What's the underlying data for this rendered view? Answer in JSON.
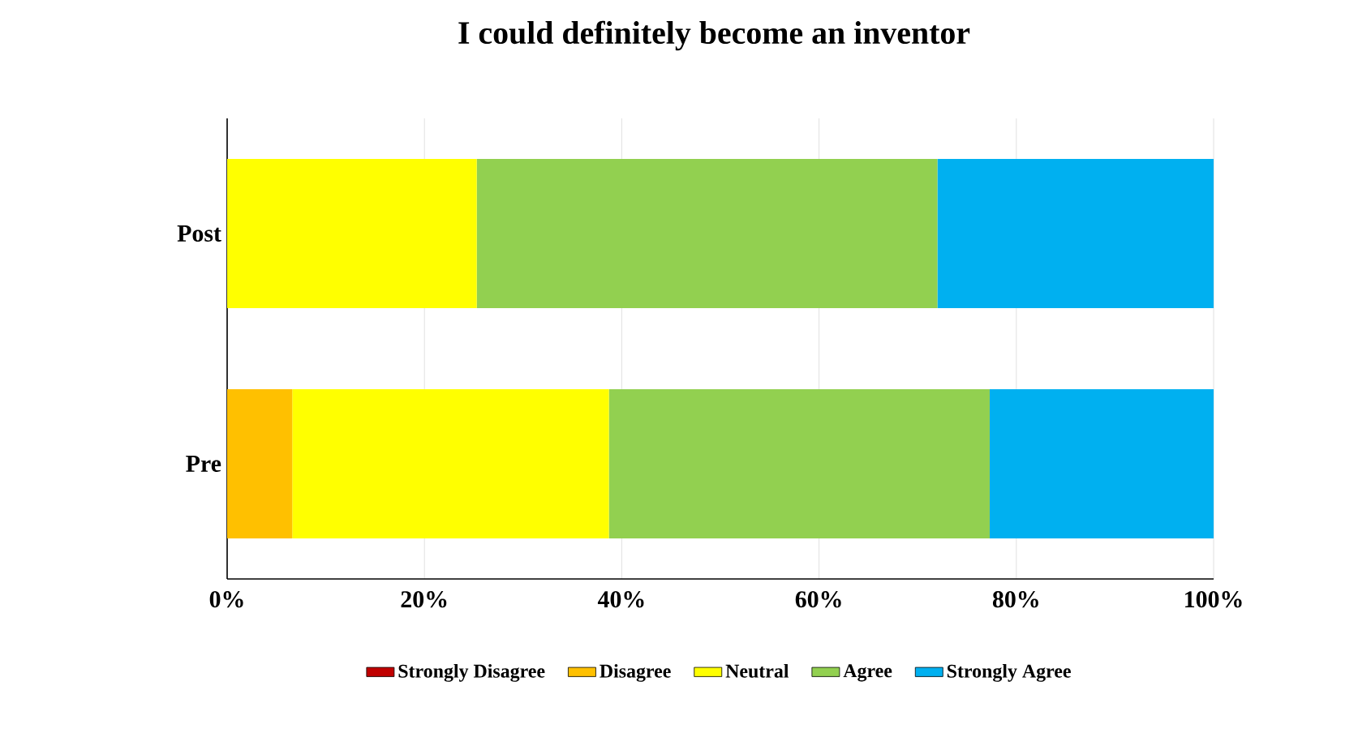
{
  "chart_data": {
    "type": "bar",
    "title": "I could definitely become an inventor",
    "orientation": "horizontal",
    "stacked": true,
    "categories": [
      "Post",
      "Pre"
    ],
    "series": [
      {
        "name": "Strongly Disagree",
        "color": "#c00000",
        "values": [
          0,
          0
        ]
      },
      {
        "name": "Disagree",
        "color": "#ffc000",
        "values": [
          0,
          6.6
        ]
      },
      {
        "name": "Neutral",
        "color": "#ffff00",
        "values": [
          25.3,
          32.1
        ]
      },
      {
        "name": "Agree",
        "color": "#92d050",
        "values": [
          46.7,
          38.6
        ]
      },
      {
        "name": "Strongly Agree",
        "color": "#00b0f0",
        "values": [
          28.0,
          22.7
        ]
      }
    ],
    "xlim": [
      0,
      100
    ],
    "xticks": [
      {
        "value": 0,
        "label": "0%"
      },
      {
        "value": 20,
        "label": "20%"
      },
      {
        "value": 40,
        "label": "40%"
      },
      {
        "value": 60,
        "label": "60%"
      },
      {
        "value": 80,
        "label": "80%"
      },
      {
        "value": 100,
        "label": "100%"
      }
    ],
    "grid": "x",
    "legend": "bottom"
  }
}
